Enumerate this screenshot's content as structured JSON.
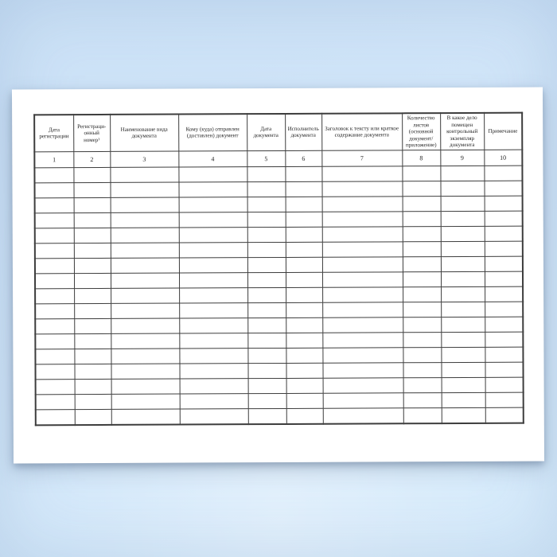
{
  "page": {
    "kind": "registration-journal-form",
    "paper_color": "#ffffff",
    "background_top_color": "#cbe1f6",
    "background_bottom_color": "#d9edfc",
    "border_color": "#3d3d3d",
    "text_color": "#1e1e1e"
  },
  "table": {
    "columns": [
      {
        "number": "1",
        "label": "Дата регистрации"
      },
      {
        "number": "2",
        "label": "Регистраци-онный номер¹"
      },
      {
        "number": "3",
        "label": "Наименование вида документа"
      },
      {
        "number": "4",
        "label": "Кому (куда) отправлен (доставлен) документ"
      },
      {
        "number": "5",
        "label": "Дата документа"
      },
      {
        "number": "6",
        "label": "Исполнитель документа"
      },
      {
        "number": "7",
        "label": "Заголовок к тексту или краткое содержание документа"
      },
      {
        "number": "8",
        "label": "Количество листов (основной документ/ приложение)"
      },
      {
        "number": "9",
        "label": "В какое дело помещен контрольный экземпляр документа"
      },
      {
        "number": "10",
        "label": "Примечание"
      }
    ],
    "empty_row_count": 17,
    "empty_cell_value": ""
  }
}
